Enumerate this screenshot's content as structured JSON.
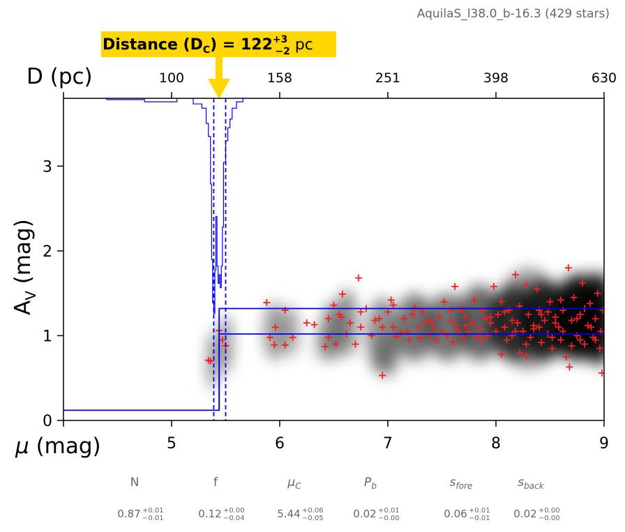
{
  "chart_data": {
    "type": "scatter",
    "cloud_name": "AquilaS_l38.0_b-16.3",
    "star_count_label": "429 stars",
    "distance_label": {
      "prefix": "Distance (D",
      "sub": "C",
      "eq": ") = 122",
      "sup_err": "+3",
      "sub_err": "−2",
      "unit": " pc"
    },
    "xaxis": {
      "label_mu": "μ",
      "label_unit": " (mag)",
      "lim": [
        4.0,
        9.0
      ],
      "ticks": [
        5,
        6,
        7,
        8,
        9
      ],
      "tick_labels": [
        "5",
        "6",
        "7",
        "8",
        "9"
      ]
    },
    "top_axis": {
      "label": "D (pc)",
      "ticks_mu": [
        5.0,
        6.0,
        7.0,
        8.0,
        9.0
      ],
      "tick_labels": [
        "100",
        "158",
        "251",
        "398",
        "630"
      ]
    },
    "yaxis": {
      "label_main": "A",
      "label_sub": "V",
      "label_unit": " (mag)",
      "lim": [
        0,
        3.8
      ],
      "ticks": [
        0,
        1,
        2,
        3
      ],
      "tick_labels": [
        "0",
        "1",
        "2",
        "3"
      ]
    },
    "model": {
      "distance_modulus": 5.44,
      "dm_lower": 5.39,
      "dm_upper": 5.5,
      "foreground_av": 0.12,
      "background_av_upper": 1.32,
      "background_av_lower": 1.02,
      "line_color": "#0000ee"
    },
    "marker_color": "#ee2222",
    "parameters": [
      {
        "name": "N",
        "value": "0.87",
        "plus": "+0.01",
        "minus": "−0.01",
        "italic": false
      },
      {
        "name": "f",
        "value": "0.12",
        "plus": "+0.00",
        "minus": "−0.04",
        "italic": false
      },
      {
        "name": "μ",
        "sub": "C",
        "value": "5.44",
        "plus": "+0.06",
        "minus": "−0.05",
        "italic": true
      },
      {
        "name": "P",
        "sub": "b",
        "value": "0.02",
        "plus": "+0.01",
        "minus": "−0.00",
        "italic": true
      },
      {
        "name": "s",
        "sub": "fore",
        "value": "0.06",
        "plus": "+0.01",
        "minus": "−0.01",
        "italic": true
      },
      {
        "name": "s",
        "sub": "back",
        "value": "0.02",
        "plus": "+0.00",
        "minus": "−0.00",
        "italic": true
      }
    ],
    "stars": [
      [
        5.34,
        0.71
      ],
      [
        5.36,
        0.7
      ],
      [
        5.44,
        1.06
      ],
      [
        5.47,
        0.95
      ],
      [
        5.5,
        0.88
      ],
      [
        5.88,
        1.39
      ],
      [
        5.91,
        0.98
      ],
      [
        5.95,
        0.89
      ],
      [
        5.96,
        1.1
      ],
      [
        6.05,
        1.3
      ],
      [
        6.05,
        0.89
      ],
      [
        6.12,
        0.98
      ],
      [
        6.25,
        1.15
      ],
      [
        6.32,
        1.13
      ],
      [
        6.42,
        0.87
      ],
      [
        6.45,
        1.2
      ],
      [
        6.45,
        0.98
      ],
      [
        6.5,
        1.36
      ],
      [
        6.52,
        0.9
      ],
      [
        6.55,
        1.25
      ],
      [
        6.57,
        1.22
      ],
      [
        6.58,
        1.49
      ],
      [
        6.62,
        1.02
      ],
      [
        6.65,
        1.15
      ],
      [
        6.7,
        0.9
      ],
      [
        6.73,
        1.68
      ],
      [
        6.75,
        1.28
      ],
      [
        6.75,
        1.1
      ],
      [
        6.8,
        1.32
      ],
      [
        6.85,
        1.0
      ],
      [
        6.88,
        1.18
      ],
      [
        6.92,
        1.2
      ],
      [
        6.95,
        1.1
      ],
      [
        6.95,
        0.53
      ],
      [
        7.0,
        1.28
      ],
      [
        7.03,
        1.42
      ],
      [
        7.05,
        1.36
      ],
      [
        7.05,
        1.1
      ],
      [
        7.08,
        0.99
      ],
      [
        7.12,
        1.03
      ],
      [
        7.15,
        1.2
      ],
      [
        7.18,
        1.05
      ],
      [
        7.2,
        0.95
      ],
      [
        7.23,
        1.25
      ],
      [
        7.25,
        1.33
      ],
      [
        7.28,
        1.1
      ],
      [
        7.3,
        0.97
      ],
      [
        7.32,
        1.28
      ],
      [
        7.35,
        1.16
      ],
      [
        7.38,
        1.0
      ],
      [
        7.42,
        1.1
      ],
      [
        7.45,
        0.95
      ],
      [
        7.48,
        1.22
      ],
      [
        7.5,
        1.05
      ],
      [
        7.52,
        1.4
      ],
      [
        7.55,
        1.0
      ],
      [
        7.58,
        1.18
      ],
      [
        7.6,
        0.93
      ],
      [
        7.62,
        1.58
      ],
      [
        7.63,
        1.12
      ],
      [
        7.65,
        1.05
      ],
      [
        7.68,
        1.3
      ],
      [
        7.7,
        0.98
      ],
      [
        7.72,
        1.22
      ],
      [
        7.75,
        1.05
      ],
      [
        7.78,
        1.15
      ],
      [
        7.8,
        1.42
      ],
      [
        7.82,
        0.98
      ],
      [
        7.85,
        1.08
      ],
      [
        7.88,
        1.3
      ],
      [
        7.9,
        1.2
      ],
      [
        7.92,
        1.0
      ],
      [
        7.95,
        1.15
      ],
      [
        7.98,
        1.58
      ],
      [
        8.0,
        1.05
      ],
      [
        8.02,
        1.25
      ],
      [
        8.05,
        0.78
      ],
      [
        8.05,
        1.4
      ],
      [
        8.08,
        1.1
      ],
      [
        8.1,
        0.95
      ],
      [
        8.12,
        1.3
      ],
      [
        8.15,
        1.0
      ],
      [
        8.18,
        1.72
      ],
      [
        8.2,
        1.15
      ],
      [
        8.22,
        0.8
      ],
      [
        8.22,
        1.35
      ],
      [
        8.25,
        1.05
      ],
      [
        8.28,
        0.76
      ],
      [
        8.28,
        1.6
      ],
      [
        8.3,
        1.25
      ],
      [
        8.32,
        0.98
      ],
      [
        8.35,
        1.12
      ],
      [
        8.38,
        1.55
      ],
      [
        8.4,
        1.3
      ],
      [
        8.42,
        0.92
      ],
      [
        8.45,
        1.18
      ],
      [
        8.48,
        1.02
      ],
      [
        8.5,
        1.4
      ],
      [
        8.52,
        0.85
      ],
      [
        8.55,
        1.22
      ],
      [
        8.58,
        1.1
      ],
      [
        8.6,
        0.95
      ],
      [
        8.62,
        1.3
      ],
      [
        8.65,
        0.75
      ],
      [
        8.67,
        1.8
      ],
      [
        8.68,
        0.63
      ],
      [
        8.7,
        1.18
      ],
      [
        8.72,
        1.45
      ],
      [
        8.75,
        1.0
      ],
      [
        8.78,
        1.25
      ],
      [
        8.8,
        1.62
      ],
      [
        8.82,
        0.9
      ],
      [
        8.85,
        1.12
      ],
      [
        8.87,
        1.38
      ],
      [
        8.9,
        0.98
      ],
      [
        8.92,
        1.2
      ],
      [
        8.94,
        1.5
      ],
      [
        8.96,
        0.85
      ],
      [
        8.97,
        1.05
      ],
      [
        8.98,
        0.56
      ],
      [
        8.99,
        1.3
      ],
      [
        8.42,
        1.25
      ],
      [
        8.55,
        1.15
      ],
      [
        8.62,
        1.05
      ],
      [
        8.75,
        1.2
      ],
      [
        8.88,
        1.1
      ],
      [
        8.35,
        1.08
      ],
      [
        8.15,
        1.18
      ],
      [
        7.95,
        1.22
      ],
      [
        8.48,
        1.28
      ],
      [
        8.7,
        0.88
      ],
      [
        8.82,
        1.32
      ],
      [
        8.6,
        1.42
      ],
      [
        8.28,
        0.9
      ],
      [
        8.08,
        1.28
      ],
      [
        7.88,
        0.95
      ],
      [
        8.92,
        0.95
      ],
      [
        8.78,
        0.95
      ],
      [
        8.52,
        0.98
      ],
      [
        8.4,
        1.1
      ],
      [
        8.18,
        1.05
      ],
      [
        7.72,
        1.12
      ],
      [
        7.58,
        1.3
      ],
      [
        7.4,
        1.18
      ]
    ],
    "grey_blobs": [
      [
        5.38,
        0.7,
        0.05,
        0.35,
        0.45
      ],
      [
        5.5,
        0.9,
        0.06,
        0.35,
        0.45
      ],
      [
        5.95,
        1.05,
        0.1,
        0.35,
        0.4
      ],
      [
        6.1,
        1.05,
        0.08,
        0.3,
        0.35
      ],
      [
        6.48,
        1.05,
        0.1,
        0.35,
        0.45
      ],
      [
        6.62,
        1.15,
        0.1,
        0.4,
        0.45
      ],
      [
        6.95,
        1.0,
        0.15,
        0.45,
        0.45
      ],
      [
        7.25,
        1.1,
        0.18,
        0.4,
        0.55
      ],
      [
        7.55,
        1.1,
        0.2,
        0.4,
        0.55
      ],
      [
        7.85,
        1.15,
        0.2,
        0.45,
        0.6
      ],
      [
        8.15,
        1.15,
        0.22,
        0.45,
        0.7
      ],
      [
        8.45,
        1.18,
        0.22,
        0.48,
        0.8
      ],
      [
        8.75,
        1.2,
        0.22,
        0.5,
        0.9
      ],
      [
        8.95,
        1.2,
        0.15,
        0.55,
        0.85
      ],
      [
        8.65,
        1.05,
        0.15,
        0.3,
        0.6
      ],
      [
        8.3,
        1.2,
        0.3,
        0.6,
        0.4
      ],
      [
        8.8,
        1.4,
        0.25,
        0.35,
        0.5
      ],
      [
        7.0,
        0.75,
        0.12,
        0.25,
        0.25
      ],
      [
        6.4,
        0.9,
        0.08,
        0.2,
        0.25
      ],
      [
        8.9,
        0.95,
        0.12,
        0.25,
        0.6
      ]
    ],
    "pdf_histogram": {
      "baseline_av": 3.81,
      "depth_scale_av": 2.55,
      "bins": [
        [
          4.0,
          0.0
        ],
        [
          4.4,
          0.01
        ],
        [
          4.75,
          0.02
        ],
        [
          5.05,
          0.0
        ],
        [
          5.2,
          0.03
        ],
        [
          5.28,
          0.05
        ],
        [
          5.32,
          0.12
        ],
        [
          5.34,
          0.18
        ],
        [
          5.36,
          0.4
        ],
        [
          5.37,
          0.75
        ],
        [
          5.38,
          0.95
        ],
        [
          5.39,
          1.0
        ],
        [
          5.4,
          0.8
        ],
        [
          5.41,
          0.55
        ],
        [
          5.42,
          0.78
        ],
        [
          5.43,
          0.86
        ],
        [
          5.44,
          0.82
        ],
        [
          5.45,
          0.88
        ],
        [
          5.46,
          0.78
        ],
        [
          5.47,
          0.6
        ],
        [
          5.48,
          0.3
        ],
        [
          5.5,
          0.2
        ],
        [
          5.52,
          0.14
        ],
        [
          5.54,
          0.1
        ],
        [
          5.56,
          0.05
        ],
        [
          5.6,
          0.02
        ],
        [
          5.66,
          0.0
        ],
        [
          9.0,
          0.0
        ]
      ]
    }
  }
}
